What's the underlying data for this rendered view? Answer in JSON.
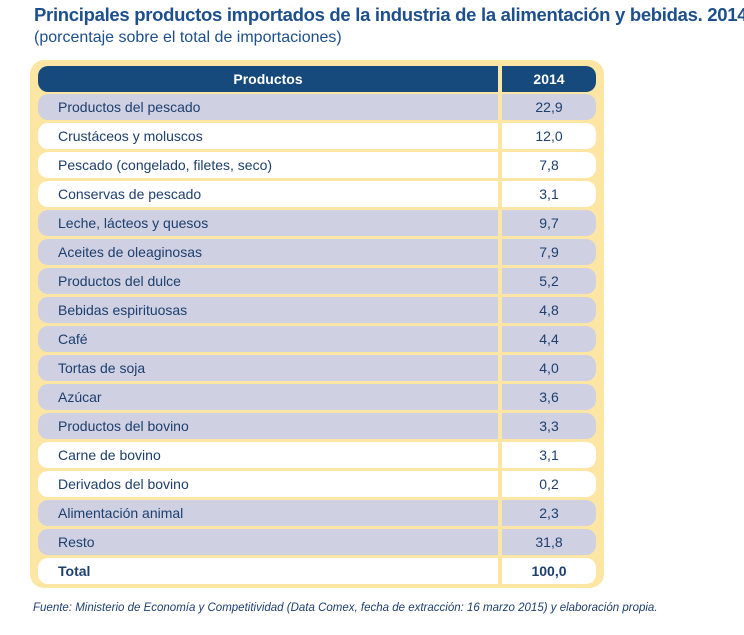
{
  "title": "Principales productos importados de la industria de la alimentación y bebidas. 2014",
  "subtitle": "(porcentaje sobre el total de importaciones)",
  "table": {
    "headers": [
      "Productos",
      "2014"
    ],
    "rows": [
      {
        "product": "Productos del pescado",
        "value": "22,9",
        "shade": "lavender"
      },
      {
        "product": "Crustáceos y moluscos",
        "value": "12,0",
        "shade": "white"
      },
      {
        "product": "Pescado (congelado, filetes, seco)",
        "value": "7,8",
        "shade": "white"
      },
      {
        "product": "Conservas de pescado",
        "value": "3,1",
        "shade": "white"
      },
      {
        "product": "Leche, lácteos y quesos",
        "value": "9,7",
        "shade": "lavender"
      },
      {
        "product": "Aceites de oleaginosas",
        "value": "7,9",
        "shade": "lavender"
      },
      {
        "product": "Productos del dulce",
        "value": "5,2",
        "shade": "lavender"
      },
      {
        "product": "Bebidas espirituosas",
        "value": "4,8",
        "shade": "lavender"
      },
      {
        "product": "Café",
        "value": "4,4",
        "shade": "lavender"
      },
      {
        "product": "Tortas de soja",
        "value": "4,0",
        "shade": "lavender"
      },
      {
        "product": "Azúcar",
        "value": "3,6",
        "shade": "lavender"
      },
      {
        "product": "Productos del bovino",
        "value": "3,3",
        "shade": "lavender"
      },
      {
        "product": "Carne de bovino",
        "value": "3,1",
        "shade": "white"
      },
      {
        "product": "Derivados del bovino",
        "value": "0,2",
        "shade": "white"
      },
      {
        "product": "Alimentación animal",
        "value": "2,3",
        "shade": "lavender"
      },
      {
        "product": "Resto",
        "value": "31,8",
        "shade": "lavender"
      }
    ],
    "total": {
      "label": "Total",
      "value": "100,0"
    }
  },
  "footer": "Fuente: Ministerio de Economía y Competitividad (Data Comex, fecha de extracción: 16 marzo 2015) y elaboración propia.",
  "colors": {
    "header": "#174a7c",
    "frame": "#fde6a4",
    "lavender": "#cfd0e2",
    "text": "#1d3f6e"
  }
}
